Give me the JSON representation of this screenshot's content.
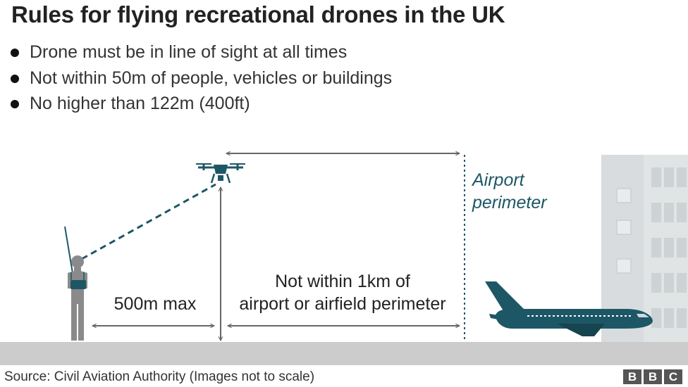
{
  "title": "Rules for flying recreational drones in the UK",
  "rules": [
    "Drone must be in line of sight at all times",
    "Not within 50m of people, vehicles or buildings",
    "No higher than 122m (400ft)"
  ],
  "diagram": {
    "airport_label_line1": "Airport",
    "airport_label_line2": "perimeter",
    "max_distance_label": "500m max",
    "airport_rule_line1": "Not within 1km of",
    "airport_rule_line2": "airport or airfield perimeter",
    "icons": [
      "person-with-controller",
      "drone",
      "airplane",
      "airport-building"
    ]
  },
  "source": "Source: Civil Aviation Authority (Images not to scale)",
  "logo": [
    "B",
    "B",
    "C"
  ],
  "colors": {
    "teal": "#1d5766",
    "arrow_grey": "#666666",
    "ground": "#cccccc",
    "building": "#e1e4e5",
    "window": "#cdd2d4"
  }
}
